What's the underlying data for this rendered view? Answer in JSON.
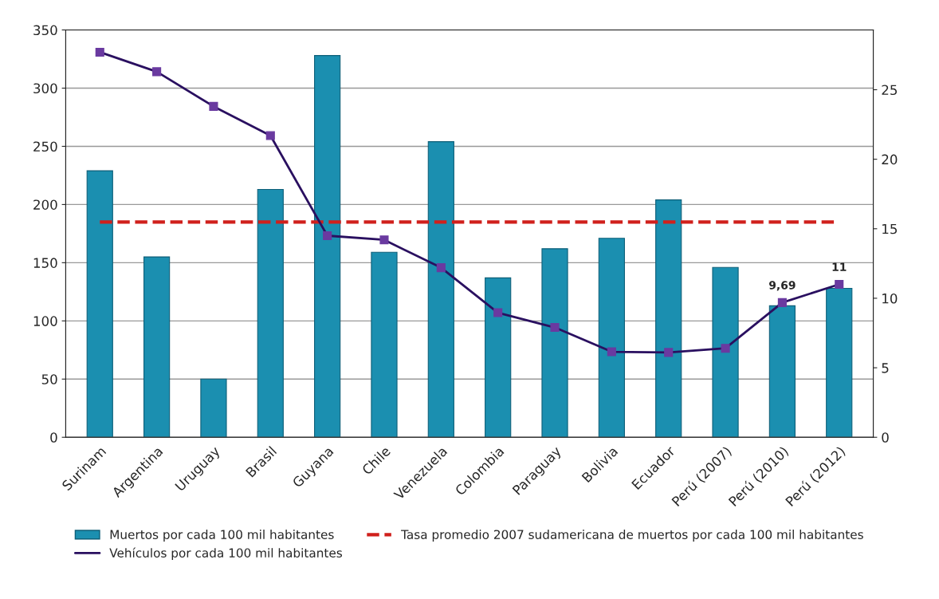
{
  "chart_data": {
    "type": "bar",
    "categories": [
      "Surinam",
      "Argentina",
      "Uruguay",
      "Brasil",
      "Guyana",
      "Chile",
      "Venezuela",
      "Colombia",
      "Paraguay",
      "Bolivia",
      "Ecuador",
      "Perú (2007)",
      "Perú (2010)",
      "Perú (2012)"
    ],
    "series": [
      {
        "name": "Muertos por cada 100 mil habitantes",
        "color": "#1b8fb0",
        "values": [
          229,
          155,
          50,
          213,
          328,
          159,
          254,
          137,
          162,
          171,
          204,
          146,
          113,
          128
        ]
      },
      {
        "name": "Vehículos por cada 100 mil habitantes",
        "type": "line",
        "axis": "y2",
        "color": "#2a1060",
        "marker": "square",
        "values": [
          27.7,
          26.3,
          23.8,
          21.7,
          14.5,
          14.2,
          12.2,
          8.96,
          7.9,
          6.15,
          6.1,
          6.4,
          9.69,
          11
        ],
        "value_labels": [
          null,
          null,
          null,
          null,
          null,
          null,
          null,
          null,
          null,
          null,
          null,
          null,
          "9,69",
          "11"
        ]
      }
    ],
    "ref_lines": [
      {
        "axis": "y",
        "value": 185,
        "label": "Tasa promedio 2007 sudamericana de muertos por cada 100 mil habitantes",
        "color": "#d0201c",
        "line_style": "dashed"
      }
    ],
    "ylim": [
      0,
      350
    ],
    "yticks": [
      0,
      50,
      100,
      150,
      200,
      250,
      300,
      350
    ],
    "y2lim": [
      0,
      29.3
    ],
    "y2ticks": [
      0,
      5,
      10,
      15,
      20,
      25
    ],
    "grid": "y",
    "legend": "bottom"
  }
}
